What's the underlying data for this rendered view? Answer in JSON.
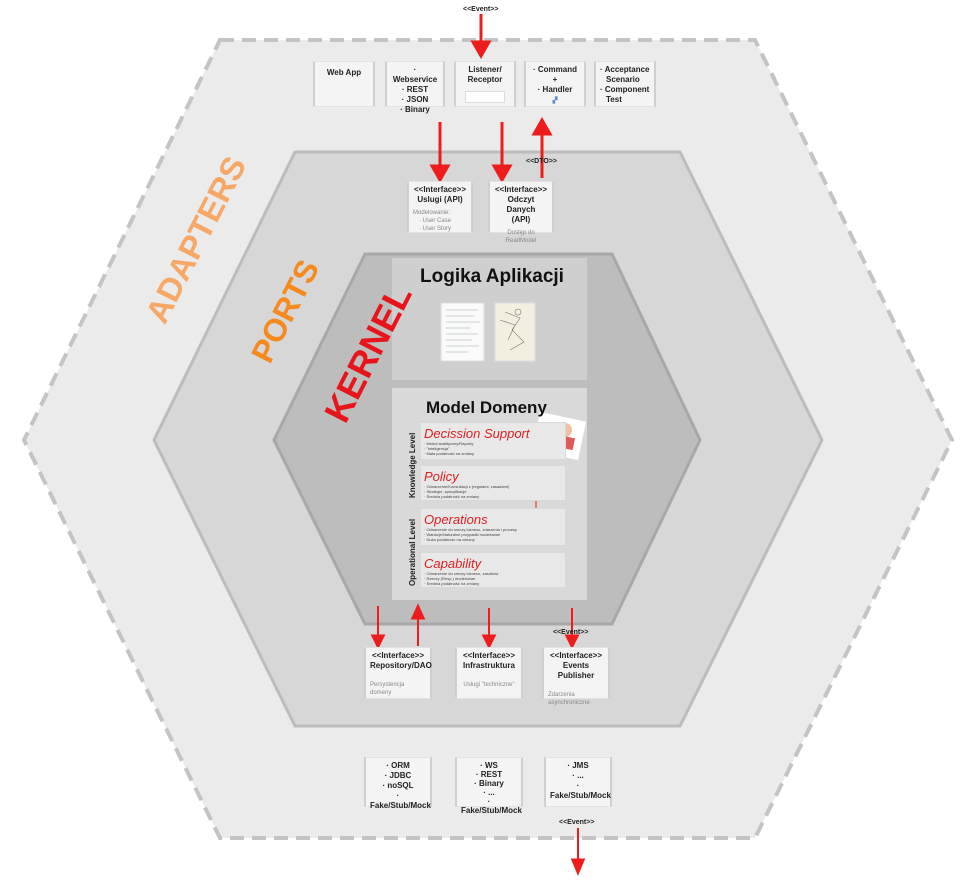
{
  "labels": {
    "adapters": "ADAPTERS",
    "ports": "PORTS",
    "kernel": "KERNEL"
  },
  "events": {
    "top": "<<Event>>",
    "dto": "<<DTO>>",
    "publisher": "<<Event>>",
    "bottom": "<<Event>>"
  },
  "top_adapters": {
    "webapp": "Web App",
    "webservice": [
      "· Webservice",
      "· REST",
      "· JSON",
      "· Binary"
    ],
    "listener": [
      "Listener/",
      "Receptor"
    ],
    "command": [
      "· Command",
      "+",
      "· Handler"
    ],
    "acceptance": [
      "· Acceptance",
      "Scenario",
      "· Component",
      "Test"
    ]
  },
  "top_ports": {
    "uslugi": {
      "title": [
        "<<Interface>>",
        "Uslugi (API)"
      ],
      "sub": [
        "Modelowanie:",
        "· User Case",
        "· User Story"
      ]
    },
    "odczyt": {
      "title": [
        "<<Interface>>",
        "Odczyt Danych",
        "(API)"
      ],
      "sub": [
        "Dostęp do ReadModel"
      ]
    }
  },
  "kernel": {
    "logika": "Logika Aplikacji",
    "model": "Model Domeny",
    "knowledge_level": "Knowledge Level",
    "operational_level": "Operational Level",
    "rows": [
      {
        "title": "Decission Support",
        "desc": [
          "· Moduł analityczny/Raporty",
          "· \"Inteligencja\"",
          "· Mała podatność na zmiany"
        ]
      },
      {
        "title": "Policy",
        "desc": [
          "· Odnarzenie/Konsultacji z (regułami, zasadami)",
          "· Strategie, specyfikacje",
          "· Średnia podatność na zmiany"
        ]
      },
      {
        "title": "Operations",
        "desc": [
          "· Odnarzenie do rzeczy biznesu, zdarzenia i procesy",
          "· Wariacje/Naturalne przypadki modelowań",
          "· Duża podatność na zmiany"
        ]
      },
      {
        "title": "Capability",
        "desc": [
          "· Odnarzenie do rzeczy biznesu, zasobów",
          "· Rzeczy (Resp.) modelowań",
          "· Średnia podatność na zmiany"
        ]
      }
    ]
  },
  "bottom_ports": {
    "repository": {
      "title": [
        "<<Interface>>",
        "Repository/DAO"
      ],
      "sub": [
        "Persystencja",
        "domeny"
      ]
    },
    "infrastruktura": {
      "title": [
        "<<Interface>>",
        "Infrastruktura"
      ],
      "sub": [
        "Usługi \"techniczne\""
      ]
    },
    "events": {
      "title": [
        "<<Interface>>",
        "Events Publisher"
      ],
      "sub": [
        "Zdarzenia",
        "asynchroniczne"
      ]
    }
  },
  "bottom_adapters": {
    "orm": [
      "· ORM",
      "· JDBC",
      "· noSQL",
      "· Fake/Stub/Mock"
    ],
    "ws": [
      "· WS",
      "· REST",
      "· Binary",
      "· ...",
      "· Fake/Stub/Mock"
    ],
    "jms": [
      "· JMS",
      "· ...",
      "· Fake/Stub/Mock"
    ]
  },
  "colors": {
    "adapters_label": "#f8a866",
    "ports_label": "#f68a1e",
    "kernel_label": "#e8141b",
    "arrow": "#ee1c1c",
    "row_title": "#e02020"
  }
}
